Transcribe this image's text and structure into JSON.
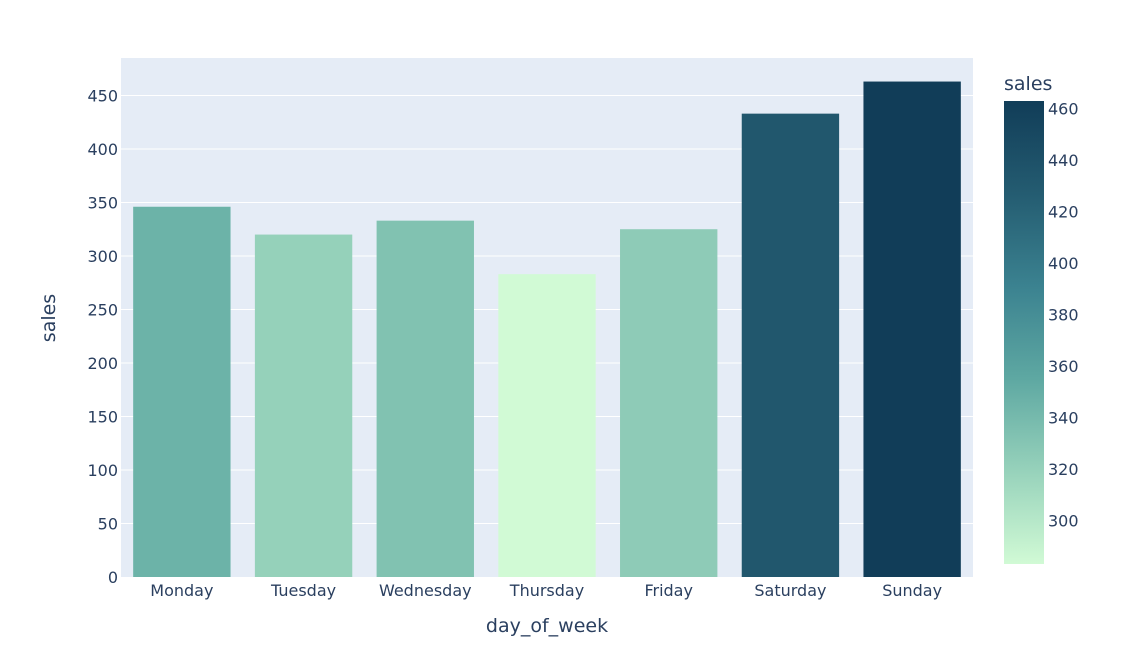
{
  "chart_data": {
    "type": "bar",
    "categories": [
      "Monday",
      "Tuesday",
      "Wednesday",
      "Thursday",
      "Friday",
      "Saturday",
      "Sunday"
    ],
    "values": [
      346,
      320,
      333,
      283,
      325,
      433,
      463
    ],
    "xlabel": "day_of_week",
    "ylabel": "sales",
    "ylim": [
      0,
      485
    ],
    "yticks": [
      0,
      50,
      100,
      150,
      200,
      250,
      300,
      350,
      400,
      450
    ],
    "grid": true,
    "colorbar": {
      "title": "sales",
      "range": [
        283,
        463
      ],
      "ticks": [
        300,
        320,
        340,
        360,
        380,
        400,
        420,
        440,
        460
      ],
      "colorscale": [
        "#d1fad5",
        "#97d2bb",
        "#5ea8a2",
        "#3b8290",
        "#245c71",
        "#113d58"
      ]
    },
    "colors": {
      "plot_bg": "#e5ecf6",
      "grid": "#ffffff",
      "text": "#2a3f5f"
    }
  }
}
